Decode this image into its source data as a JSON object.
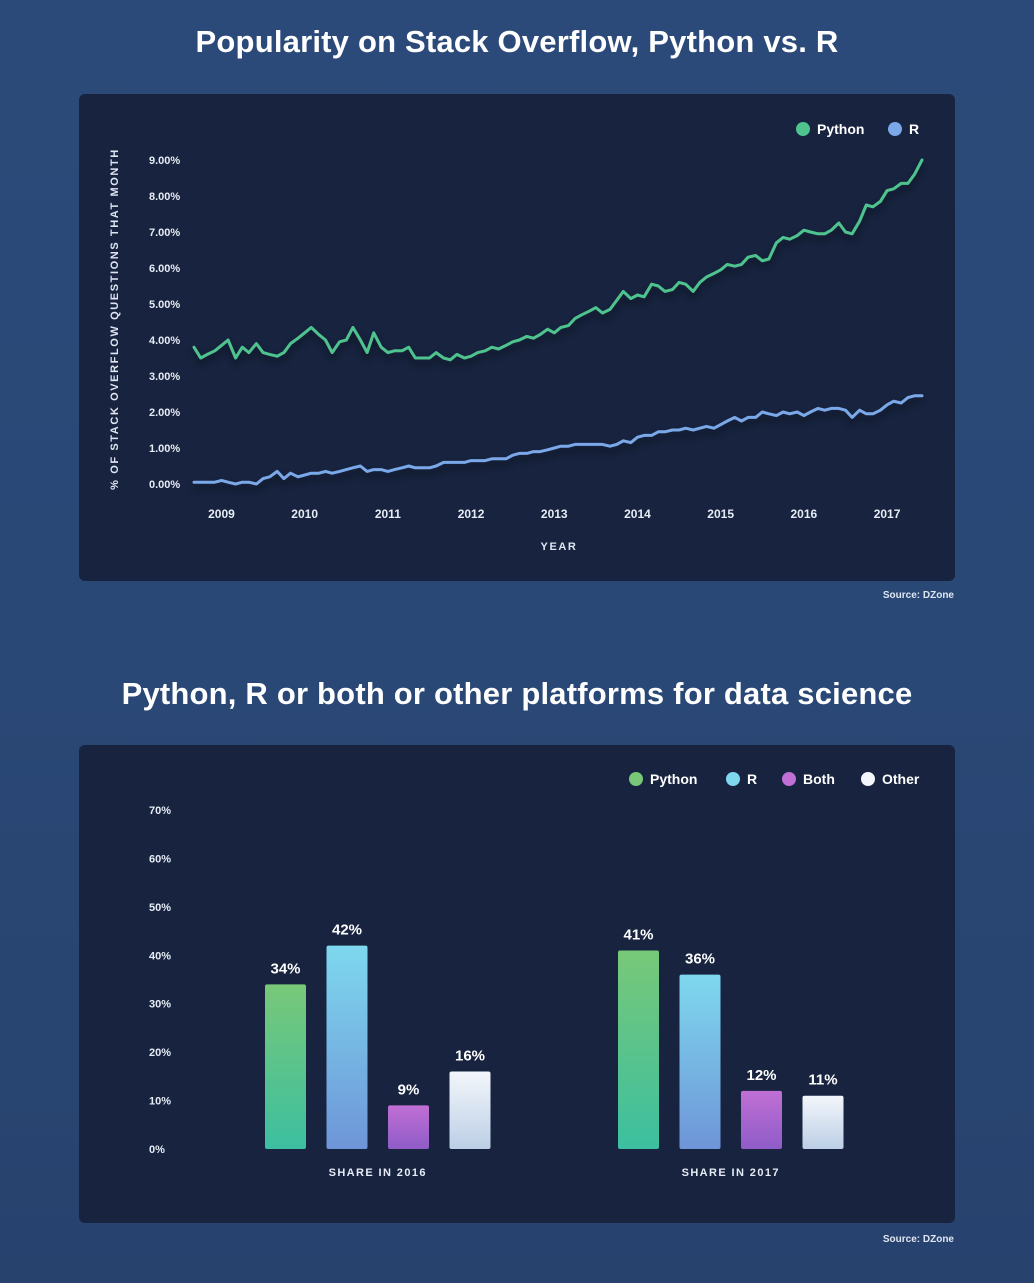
{
  "chart1": {
    "title": "Popularity on Stack Overflow, Python vs. R",
    "source": "Source: DZone",
    "chart_data": {
      "type": "line",
      "title": "Popularity on Stack Overflow, Python vs. R",
      "xlabel": "YEAR",
      "ylabel": "% OF STACK OVERFLOW QUESTIONS THAT MONTH",
      "x_ticks": [
        "2009",
        "2010",
        "2011",
        "2012",
        "2013",
        "2014",
        "2015",
        "2016",
        "2017"
      ],
      "y_ticks": [
        "0.00%",
        "1.00%",
        "2.00%",
        "3.00%",
        "4.00%",
        "5.00%",
        "6.00%",
        "7.00%",
        "8.00%",
        "9.00%"
      ],
      "xlim": [
        2008.67,
        2017.42
      ],
      "ylim": [
        0,
        9
      ],
      "legend_position": "top-right",
      "series": [
        {
          "name": "Python",
          "color": "#4fc38e",
          "points": [
            [
              2008.67,
              3.8
            ],
            [
              2008.75,
              3.5
            ],
            [
              2008.83,
              3.6
            ],
            [
              2008.92,
              3.7
            ],
            [
              2009.0,
              3.85
            ],
            [
              2009.08,
              4.0
            ],
            [
              2009.17,
              3.5
            ],
            [
              2009.25,
              3.8
            ],
            [
              2009.33,
              3.65
            ],
            [
              2009.42,
              3.9
            ],
            [
              2009.5,
              3.65
            ],
            [
              2009.58,
              3.6
            ],
            [
              2009.67,
              3.55
            ],
            [
              2009.75,
              3.65
            ],
            [
              2009.83,
              3.9
            ],
            [
              2009.92,
              4.05
            ],
            [
              2010.0,
              4.2
            ],
            [
              2010.08,
              4.35
            ],
            [
              2010.17,
              4.15
            ],
            [
              2010.25,
              4.0
            ],
            [
              2010.33,
              3.65
            ],
            [
              2010.42,
              3.95
            ],
            [
              2010.5,
              4.0
            ],
            [
              2010.58,
              4.35
            ],
            [
              2010.67,
              4.0
            ],
            [
              2010.75,
              3.65
            ],
            [
              2010.83,
              4.2
            ],
            [
              2010.92,
              3.8
            ],
            [
              2011.0,
              3.65
            ],
            [
              2011.08,
              3.7
            ],
            [
              2011.17,
              3.7
            ],
            [
              2011.25,
              3.8
            ],
            [
              2011.33,
              3.5
            ],
            [
              2011.42,
              3.5
            ],
            [
              2011.5,
              3.5
            ],
            [
              2011.58,
              3.65
            ],
            [
              2011.67,
              3.5
            ],
            [
              2011.75,
              3.45
            ],
            [
              2011.83,
              3.6
            ],
            [
              2011.92,
              3.5
            ],
            [
              2012.0,
              3.55
            ],
            [
              2012.08,
              3.65
            ],
            [
              2012.17,
              3.7
            ],
            [
              2012.25,
              3.8
            ],
            [
              2012.33,
              3.75
            ],
            [
              2012.42,
              3.85
            ],
            [
              2012.5,
              3.95
            ],
            [
              2012.58,
              4.0
            ],
            [
              2012.67,
              4.1
            ],
            [
              2012.75,
              4.05
            ],
            [
              2012.83,
              4.15
            ],
            [
              2012.92,
              4.3
            ],
            [
              2013.0,
              4.2
            ],
            [
              2013.08,
              4.35
            ],
            [
              2013.17,
              4.4
            ],
            [
              2013.25,
              4.6
            ],
            [
              2013.33,
              4.7
            ],
            [
              2013.42,
              4.8
            ],
            [
              2013.5,
              4.9
            ],
            [
              2013.58,
              4.75
            ],
            [
              2013.67,
              4.85
            ],
            [
              2013.75,
              5.1
            ],
            [
              2013.83,
              5.35
            ],
            [
              2013.92,
              5.15
            ],
            [
              2014.0,
              5.25
            ],
            [
              2014.08,
              5.2
            ],
            [
              2014.17,
              5.55
            ],
            [
              2014.25,
              5.5
            ],
            [
              2014.33,
              5.35
            ],
            [
              2014.42,
              5.4
            ],
            [
              2014.5,
              5.6
            ],
            [
              2014.58,
              5.55
            ],
            [
              2014.67,
              5.35
            ],
            [
              2014.75,
              5.6
            ],
            [
              2014.83,
              5.75
            ],
            [
              2014.92,
              5.85
            ],
            [
              2015.0,
              5.95
            ],
            [
              2015.08,
              6.1
            ],
            [
              2015.17,
              6.05
            ],
            [
              2015.25,
              6.1
            ],
            [
              2015.33,
              6.3
            ],
            [
              2015.42,
              6.35
            ],
            [
              2015.5,
              6.2
            ],
            [
              2015.58,
              6.25
            ],
            [
              2015.67,
              6.7
            ],
            [
              2015.75,
              6.85
            ],
            [
              2015.83,
              6.8
            ],
            [
              2015.92,
              6.9
            ],
            [
              2016.0,
              7.05
            ],
            [
              2016.08,
              7.0
            ],
            [
              2016.17,
              6.95
            ],
            [
              2016.25,
              6.95
            ],
            [
              2016.33,
              7.05
            ],
            [
              2016.42,
              7.25
            ],
            [
              2016.5,
              7.0
            ],
            [
              2016.58,
              6.95
            ],
            [
              2016.67,
              7.3
            ],
            [
              2016.75,
              7.75
            ],
            [
              2016.83,
              7.7
            ],
            [
              2016.92,
              7.85
            ],
            [
              2017.0,
              8.15
            ],
            [
              2017.08,
              8.2
            ],
            [
              2017.17,
              8.35
            ],
            [
              2017.25,
              8.35
            ],
            [
              2017.33,
              8.6
            ],
            [
              2017.42,
              9.0
            ]
          ]
        },
        {
          "name": "R",
          "color": "#7aa8e8",
          "points": [
            [
              2008.67,
              0.05
            ],
            [
              2008.75,
              0.05
            ],
            [
              2008.83,
              0.05
            ],
            [
              2008.92,
              0.05
            ],
            [
              2009.0,
              0.1
            ],
            [
              2009.08,
              0.05
            ],
            [
              2009.17,
              0.0
            ],
            [
              2009.25,
              0.05
            ],
            [
              2009.33,
              0.05
            ],
            [
              2009.42,
              0.0
            ],
            [
              2009.5,
              0.15
            ],
            [
              2009.58,
              0.2
            ],
            [
              2009.67,
              0.35
            ],
            [
              2009.75,
              0.15
            ],
            [
              2009.83,
              0.3
            ],
            [
              2009.92,
              0.2
            ],
            [
              2010.0,
              0.25
            ],
            [
              2010.08,
              0.3
            ],
            [
              2010.17,
              0.3
            ],
            [
              2010.25,
              0.35
            ],
            [
              2010.33,
              0.3
            ],
            [
              2010.42,
              0.35
            ],
            [
              2010.5,
              0.4
            ],
            [
              2010.58,
              0.45
            ],
            [
              2010.67,
              0.5
            ],
            [
              2010.75,
              0.35
            ],
            [
              2010.83,
              0.4
            ],
            [
              2010.92,
              0.4
            ],
            [
              2011.0,
              0.35
            ],
            [
              2011.08,
              0.4
            ],
            [
              2011.17,
              0.45
            ],
            [
              2011.25,
              0.5
            ],
            [
              2011.33,
              0.45
            ],
            [
              2011.42,
              0.45
            ],
            [
              2011.5,
              0.45
            ],
            [
              2011.58,
              0.5
            ],
            [
              2011.67,
              0.6
            ],
            [
              2011.75,
              0.6
            ],
            [
              2011.83,
              0.6
            ],
            [
              2011.92,
              0.6
            ],
            [
              2012.0,
              0.65
            ],
            [
              2012.08,
              0.65
            ],
            [
              2012.17,
              0.65
            ],
            [
              2012.25,
              0.7
            ],
            [
              2012.33,
              0.7
            ],
            [
              2012.42,
              0.7
            ],
            [
              2012.5,
              0.8
            ],
            [
              2012.58,
              0.85
            ],
            [
              2012.67,
              0.85
            ],
            [
              2012.75,
              0.9
            ],
            [
              2012.83,
              0.9
            ],
            [
              2012.92,
              0.95
            ],
            [
              2013.0,
              1.0
            ],
            [
              2013.08,
              1.05
            ],
            [
              2013.17,
              1.05
            ],
            [
              2013.25,
              1.1
            ],
            [
              2013.33,
              1.1
            ],
            [
              2013.42,
              1.1
            ],
            [
              2013.5,
              1.1
            ],
            [
              2013.58,
              1.1
            ],
            [
              2013.67,
              1.05
            ],
            [
              2013.75,
              1.1
            ],
            [
              2013.83,
              1.2
            ],
            [
              2013.92,
              1.15
            ],
            [
              2014.0,
              1.3
            ],
            [
              2014.08,
              1.35
            ],
            [
              2014.17,
              1.35
            ],
            [
              2014.25,
              1.45
            ],
            [
              2014.33,
              1.45
            ],
            [
              2014.42,
              1.5
            ],
            [
              2014.5,
              1.5
            ],
            [
              2014.58,
              1.55
            ],
            [
              2014.67,
              1.5
            ],
            [
              2014.75,
              1.55
            ],
            [
              2014.83,
              1.6
            ],
            [
              2014.92,
              1.55
            ],
            [
              2015.0,
              1.65
            ],
            [
              2015.08,
              1.75
            ],
            [
              2015.17,
              1.85
            ],
            [
              2015.25,
              1.75
            ],
            [
              2015.33,
              1.85
            ],
            [
              2015.42,
              1.85
            ],
            [
              2015.5,
              2.0
            ],
            [
              2015.58,
              1.95
            ],
            [
              2015.67,
              1.9
            ],
            [
              2015.75,
              2.0
            ],
            [
              2015.83,
              1.95
            ],
            [
              2015.92,
              2.0
            ],
            [
              2016.0,
              1.9
            ],
            [
              2016.08,
              2.0
            ],
            [
              2016.17,
              2.1
            ],
            [
              2016.25,
              2.05
            ],
            [
              2016.33,
              2.1
            ],
            [
              2016.42,
              2.1
            ],
            [
              2016.5,
              2.05
            ],
            [
              2016.58,
              1.85
            ],
            [
              2016.67,
              2.05
            ],
            [
              2016.75,
              1.95
            ],
            [
              2016.83,
              1.95
            ],
            [
              2016.92,
              2.05
            ],
            [
              2017.0,
              2.2
            ],
            [
              2017.08,
              2.3
            ],
            [
              2017.17,
              2.25
            ],
            [
              2017.25,
              2.4
            ],
            [
              2017.33,
              2.45
            ],
            [
              2017.42,
              2.45
            ]
          ]
        }
      ]
    }
  },
  "chart2": {
    "title": "Python, R or both or other platforms for data science",
    "source": "Source: DZone",
    "chart_data": {
      "type": "bar",
      "title": "Python, R or both or other platforms for data science",
      "categories": [
        "SHARE IN 2016",
        "SHARE IN 2017"
      ],
      "y_ticks": [
        "0%",
        "10%",
        "20%",
        "30%",
        "40%",
        "50%",
        "60%",
        "70%"
      ],
      "ylim": [
        0,
        70
      ],
      "legend_position": "top-right",
      "series": [
        {
          "name": "Python",
          "values": [
            34,
            41
          ],
          "labels": [
            "34%",
            "41%"
          ],
          "colors": [
            "#3cbfa0",
            "#78c878"
          ]
        },
        {
          "name": "R",
          "values": [
            42,
            36
          ],
          "labels": [
            "42%",
            "36%"
          ],
          "colors": [
            "#6e95d8",
            "#7ed8ee"
          ]
        },
        {
          "name": "Both",
          "values": [
            9,
            12
          ],
          "labels": [
            "9%",
            "12%"
          ],
          "colors": [
            "#8f5cc8",
            "#c06fd4"
          ]
        },
        {
          "name": "Other",
          "values": [
            16,
            11
          ],
          "labels": [
            "16%",
            "11%"
          ],
          "colors": [
            "#bccfe6",
            "#f3f6fb"
          ]
        }
      ]
    }
  }
}
